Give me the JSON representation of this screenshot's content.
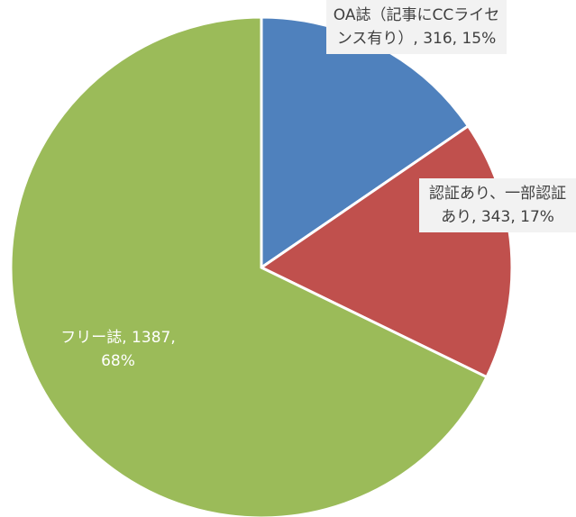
{
  "chart_data": {
    "type": "pie",
    "values": [
      316,
      343,
      1387
    ],
    "value_labels": [
      "OA誌（記事にCCライセンス有り）, 316, 15%",
      "認証あり、一部認証あり, 343, 17%",
      "フリー誌, 1387, 68%"
    ],
    "colors": [
      "#4f81bd",
      "#c0504d",
      "#9bbb59"
    ],
    "start_angle": 0,
    "direction": "clockwise"
  }
}
